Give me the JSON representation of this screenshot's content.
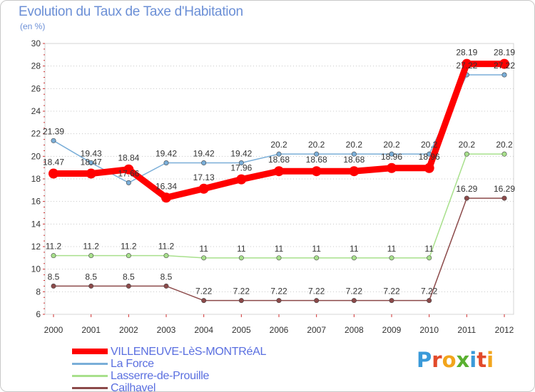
{
  "header": {
    "title": "Evolution du Taux de Taxe d'Habitation",
    "subtitle": "(en %)"
  },
  "logo": {
    "letters": [
      "P",
      "r",
      "o",
      "x",
      "i",
      "t",
      "i"
    ],
    "colors": [
      "#3a9ad9",
      "#e24a2a",
      "#f2a51c",
      "#5ab030",
      "#3a9ad9",
      "#e24a2a",
      "#f2a51c"
    ]
  },
  "chart_data": {
    "type": "line",
    "title": "Evolution du Taux de Taxe d'Habitation",
    "subtitle": "(en %)",
    "xlabel": "",
    "ylabel": "",
    "x": [
      "2000",
      "2001",
      "2002",
      "2003",
      "2004",
      "2005",
      "2006",
      "2007",
      "2008",
      "2009",
      "2010",
      "2011",
      "2012"
    ],
    "ylim": [
      6,
      30
    ],
    "yticks": [
      "6",
      "8",
      "10",
      "12",
      "14",
      "16",
      "18",
      "20",
      "22",
      "24",
      "26",
      "28",
      "30"
    ],
    "grid": "horizontal dotted",
    "legend_position": "bottom-left",
    "series": [
      {
        "name": "VILLENEUVE-LèS-MONTRéAL",
        "color": "#ff0000",
        "values": [
          18.47,
          18.47,
          18.84,
          16.34,
          17.13,
          17.96,
          18.68,
          18.68,
          18.68,
          18.96,
          18.96,
          28.19,
          28.19
        ],
        "labels": [
          "18.47",
          "18.47",
          "18.84",
          "16.34",
          "17.13",
          "17.96",
          "18.68",
          "18.68",
          "18.68",
          "18.96",
          "18.96",
          "28.19",
          "28.19"
        ]
      },
      {
        "name": "La Force",
        "color": "#7aaed8",
        "values": [
          21.39,
          19.43,
          17.66,
          19.42,
          19.42,
          19.42,
          20.2,
          20.2,
          20.2,
          20.2,
          20.2,
          27.22,
          27.22
        ],
        "labels": [
          "21.39",
          "19.43",
          "17.66",
          "19.42",
          "19.42",
          "19.42",
          "20.2",
          "20.2",
          "20.2",
          "20.2",
          "20.2",
          "27.22",
          "27.22"
        ]
      },
      {
        "name": "Lasserre-de-Prouille",
        "color": "#a8e08c",
        "values": [
          11.2,
          11.2,
          11.2,
          11.2,
          11,
          11,
          11,
          11,
          11,
          11,
          11,
          20.2,
          20.2
        ],
        "labels": [
          "11.2",
          "11.2",
          "11.2",
          "11.2",
          "11",
          "11",
          "11",
          "11",
          "11",
          "11",
          "11",
          "20.2",
          "20.2"
        ]
      },
      {
        "name": "Cailhavel",
        "color": "#8c4a4a",
        "values": [
          8.5,
          8.5,
          8.5,
          8.5,
          7.22,
          7.22,
          7.22,
          7.22,
          7.22,
          7.22,
          7.22,
          16.29,
          16.29
        ],
        "labels": [
          "8.5",
          "8.5",
          "8.5",
          "8.5",
          "7.22",
          "7.22",
          "7.22",
          "7.22",
          "7.22",
          "7.22",
          "7.22",
          "16.29",
          "16.29"
        ]
      }
    ]
  }
}
